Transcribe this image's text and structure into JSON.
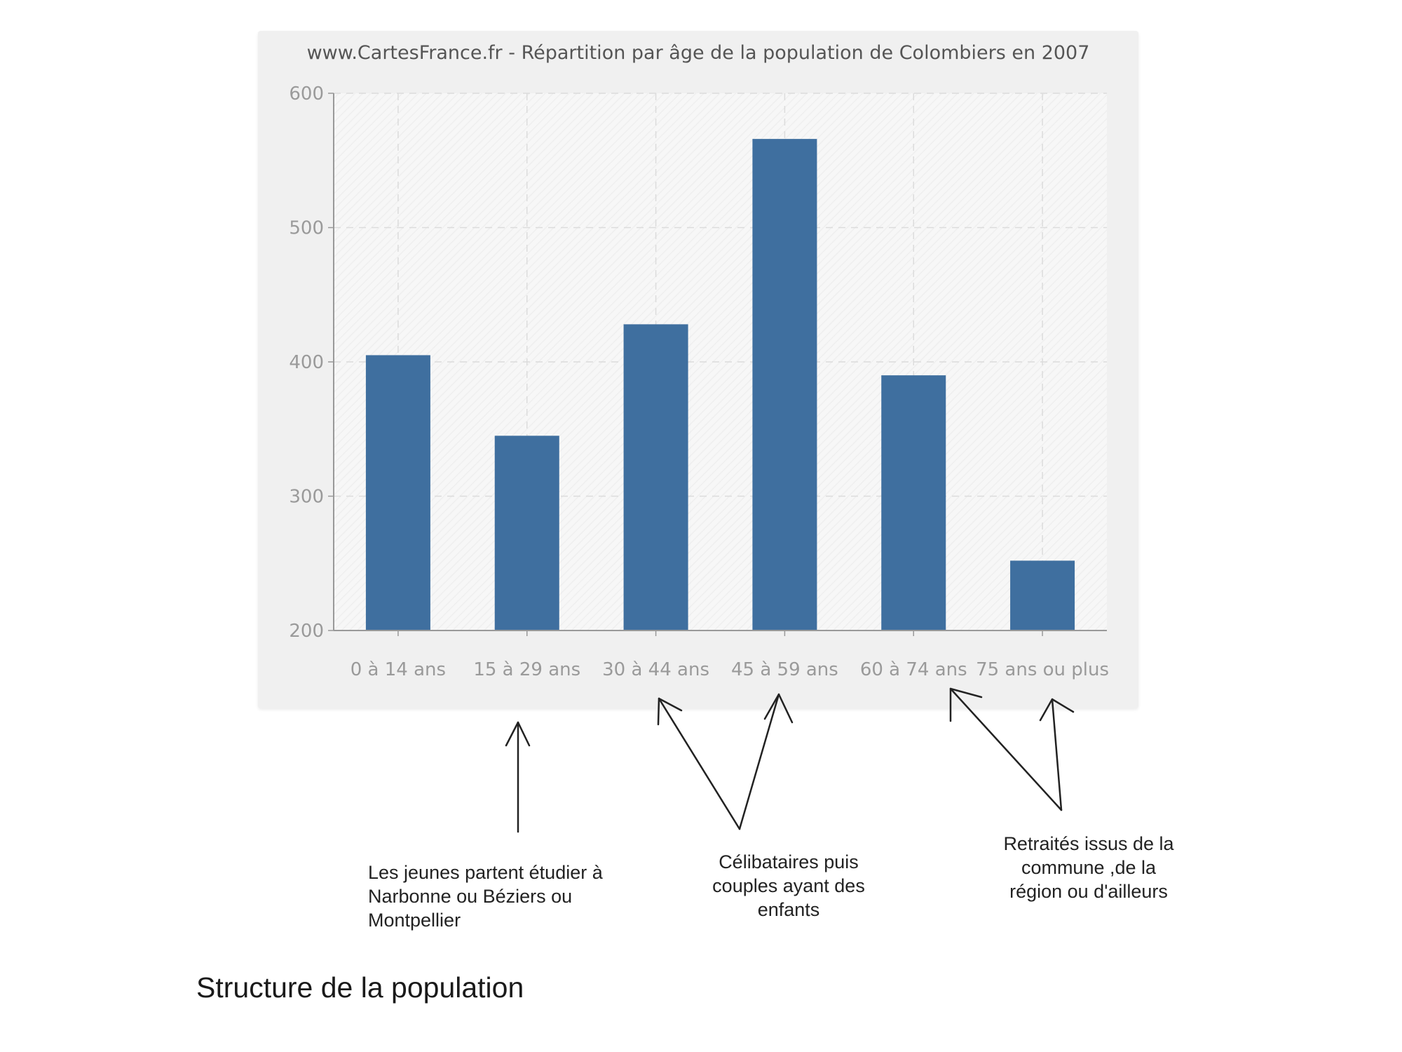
{
  "chart_data": {
    "type": "bar",
    "title": "www.CartesFrance.fr - Répartition par âge de la population de Colombiers en 2007",
    "categories": [
      "0 à 14 ans",
      "15 à 29 ans",
      "30 à 44 ans",
      "45 à 59 ans",
      "60 à 74 ans",
      "75 ans ou plus"
    ],
    "values": [
      405,
      345,
      428,
      566,
      390,
      252
    ],
    "xlabel": "",
    "ylabel": "",
    "ylim": [
      200,
      600
    ],
    "yticks": [
      200,
      300,
      400,
      500,
      600
    ],
    "grid": true,
    "bar_color": "#3f6f9f"
  },
  "annotations": {
    "students": "Les jeunes partent étudier à Narbonne ou Béziers ou Montpellier",
    "couples": "Célibataires puis couples ayant des enfants",
    "retirees": "Retraités issus de la commune ,de la région ou d'ailleurs"
  },
  "caption": "Structure de la population"
}
